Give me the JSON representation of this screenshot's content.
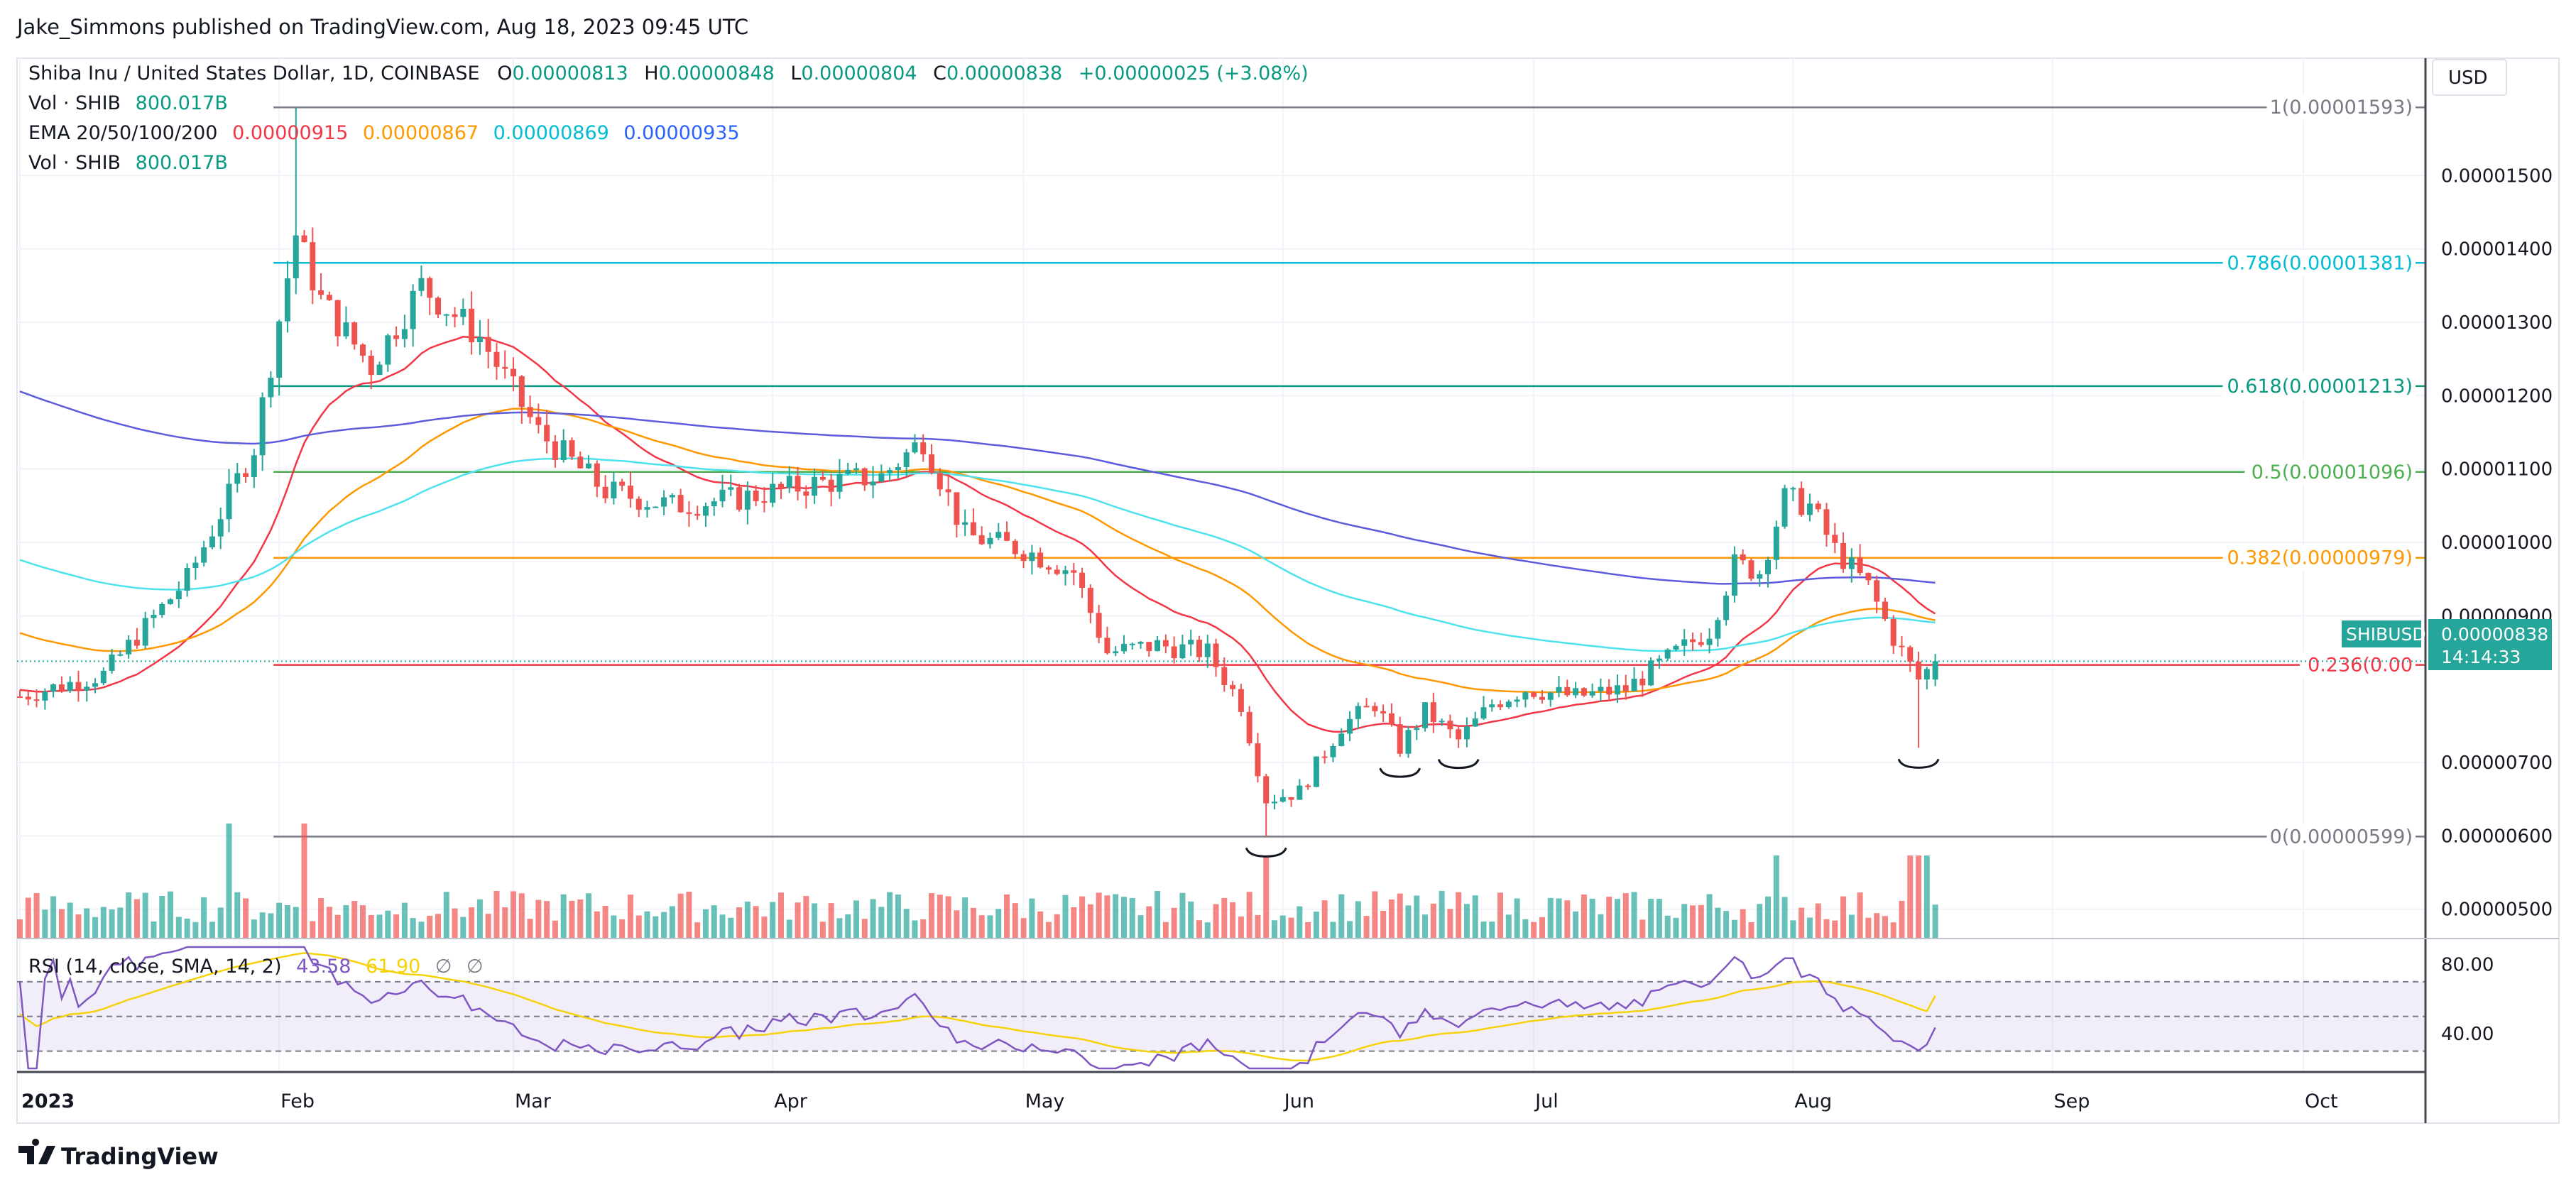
{
  "publisher_line": "Jake_Simmons published on TradingView.com, Aug 18, 2023 09:45 UTC",
  "brand": "TradingView",
  "currency_button": "USD",
  "legend": {
    "symbol": "Shiba Inu / United States Dollar, 1D, COINBASE",
    "ohlc": [
      {
        "label": "O",
        "value": "0.00000813"
      },
      {
        "label": "H",
        "value": "0.00000848"
      },
      {
        "label": "L",
        "value": "0.00000804"
      },
      {
        "label": "C",
        "value": "0.00000838"
      }
    ],
    "change": "+0.00000025 (+3.08%)",
    "vol_label": "Vol · SHIB",
    "vol_value": "800.017B",
    "ema_label": "EMA 20/50/100/200",
    "ema_values": [
      "0.00000915",
      "0.00000867",
      "0.00000869",
      "0.00000935"
    ],
    "vol2_label": "Vol · SHIB",
    "vol2_value": "800.017B",
    "rsi_label": "RSI (14, close, SMA, 14, 2)",
    "rsi_values": [
      "43.58",
      "61.90"
    ],
    "rsi_na": [
      "∅",
      "∅"
    ]
  },
  "price_label": {
    "symbol": "SHIBUSD",
    "price": "0.00000838",
    "countdown": "14:14:33"
  },
  "colors": {
    "up": "#26a69a",
    "down": "#ef5350",
    "ema20": "#f23645",
    "ema50": "#ff9800",
    "ema100": "#4ee2ec",
    "ema200": "#5b5bdc",
    "rsi": "#7e57c2",
    "rsi_ma": "#f5d20a"
  },
  "chart_data": {
    "type": "candlestick",
    "symbol": "SHIBUSD",
    "interval": "1D",
    "x_ticks": [
      "2023",
      "Feb",
      "Mar",
      "Apr",
      "May",
      "Jun",
      "Jul",
      "Aug",
      "Sep",
      "Oct"
    ],
    "y_ticks": [
      "0.00001500",
      "0.00001400",
      "0.00001300",
      "0.00001200",
      "0.00001100",
      "0.00001000",
      "0.00000900",
      "0.00000700",
      "0.00000600",
      "0.00000500"
    ],
    "ylim": [
      4.6e-06,
      1.66e-05
    ],
    "fib_levels": [
      {
        "label": "1(0.00001593)",
        "value": 1.593e-05,
        "color": "#787b86"
      },
      {
        "label": "0.786(0.00001381)",
        "value": 1.381e-05,
        "color": "#00bcd4"
      },
      {
        "label": "0.618(0.00001213)",
        "value": 1.213e-05,
        "color": "#089981"
      },
      {
        "label": "0.5(0.00001096)",
        "value": 1.096e-05,
        "color": "#4caf50"
      },
      {
        "label": "0.382(0.00000979)",
        "value": 9.79e-06,
        "color": "#ff9800"
      },
      {
        "label": "0.236(0.00",
        "value": 8.33e-06,
        "color": "#f23645"
      },
      {
        "label": "0(0.00000599)",
        "value": 5.99e-06,
        "color": "#787b86"
      }
    ],
    "last_close": 8.38e-06,
    "rsi_ticks": [
      "80.00",
      "40.00"
    ],
    "rsi_range": [
      20,
      90
    ],
    "rsi_bands": [
      70,
      50,
      30
    ],
    "rsi_last": 43.58,
    "rsi_ma_last": 61.9,
    "annotations": [
      {
        "type": "bracket",
        "date_index": 149
      },
      {
        "type": "bracket",
        "date_index": 165
      },
      {
        "type": "bracket",
        "date_index": 172
      },
      {
        "type": "bracket",
        "date_index": 227
      }
    ]
  }
}
